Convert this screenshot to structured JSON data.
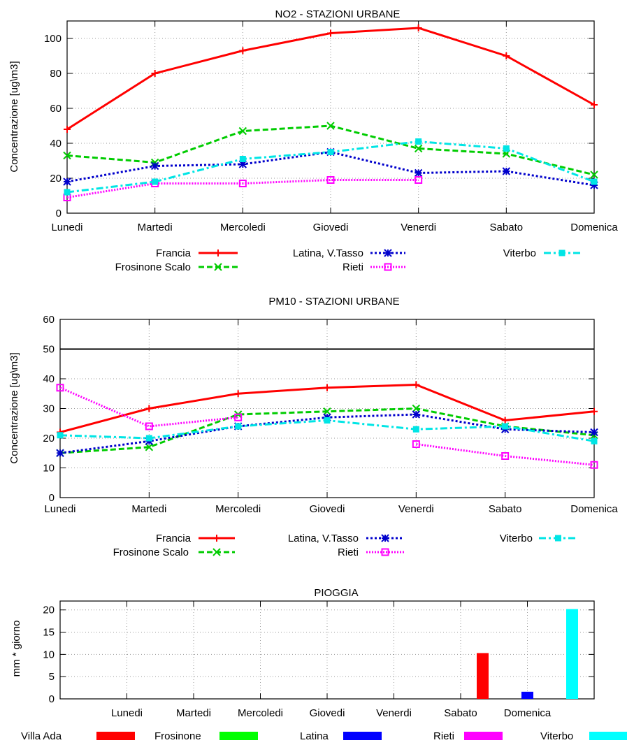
{
  "chart_data": [
    {
      "type": "line",
      "title": "NO2 - STAZIONI URBANE",
      "xlabel": "",
      "ylabel": "Concentrazione [ug\\m3]",
      "categories": [
        "Lunedi",
        "Martedi",
        "Mercoledi",
        "Giovedi",
        "Venerdi",
        "Sabato",
        "Domenica"
      ],
      "ylim": [
        0,
        110
      ],
      "yticks": [
        0,
        20,
        40,
        60,
        80,
        100
      ],
      "grid": true,
      "series": [
        {
          "name": "Francia",
          "color": "#ff0000",
          "dash": "solid",
          "marker": "plus",
          "values": [
            48,
            80,
            93,
            103,
            106,
            90,
            62
          ]
        },
        {
          "name": "Frosinone Scalo",
          "color": "#00cc00",
          "dash": "dashed",
          "marker": "x",
          "values": [
            33,
            29,
            47,
            50,
            37,
            34,
            22
          ]
        },
        {
          "name": "Latina, V.Tasso",
          "color": "#0000cc",
          "dash": "dotted",
          "marker": "star",
          "values": [
            18,
            27,
            28,
            35,
            23,
            24,
            16
          ]
        },
        {
          "name": "Rieti",
          "color": "#ff00ff",
          "dash": "dotted-fine",
          "marker": "square-open",
          "values": [
            9,
            17,
            17,
            19,
            19,
            null,
            null
          ]
        },
        {
          "name": "Viterbo",
          "color": "#00e5e5",
          "dash": "dash-dot",
          "marker": "square-filled",
          "values": [
            12,
            18,
            31,
            35,
            41,
            37,
            18
          ]
        }
      ]
    },
    {
      "type": "line",
      "title": "PM10 - STAZIONI URBANE",
      "xlabel": "",
      "ylabel": "Concentrazione [ug\\m3]",
      "categories": [
        "Lunedi",
        "Martedi",
        "Mercoledi",
        "Giovedi",
        "Venerdi",
        "Sabato",
        "Domenica"
      ],
      "ylim": [
        0,
        60
      ],
      "yticks": [
        0,
        10,
        20,
        30,
        40,
        50,
        60
      ],
      "grid": true,
      "threshold": 50,
      "series": [
        {
          "name": "Francia",
          "color": "#ff0000",
          "dash": "solid",
          "marker": "plus",
          "values": [
            22,
            30,
            35,
            37,
            38,
            26,
            29
          ]
        },
        {
          "name": "Frosinone Scalo",
          "color": "#00cc00",
          "dash": "dashed",
          "marker": "x",
          "values": [
            15,
            17,
            28,
            29,
            30,
            24,
            21
          ]
        },
        {
          "name": "Latina, V.Tasso",
          "color": "#0000cc",
          "dash": "dotted",
          "marker": "star",
          "values": [
            15,
            19,
            24,
            27,
            28,
            23,
            22
          ]
        },
        {
          "name": "Rieti",
          "color": "#ff00ff",
          "dash": "dotted-fine",
          "marker": "square-open",
          "values": [
            37,
            24,
            27,
            null,
            18,
            14,
            11
          ]
        },
        {
          "name": "Viterbo",
          "color": "#00e5e5",
          "dash": "dash-dot",
          "marker": "square-filled",
          "values": [
            21,
            20,
            24,
            26,
            23,
            24,
            19
          ]
        }
      ]
    },
    {
      "type": "bar",
      "title": "PIOGGIA",
      "xlabel": "",
      "ylabel": "mm * giorno",
      "categories": [
        "Lunedi",
        "Martedi",
        "Mercoledi",
        "Giovedi",
        "Venerdi",
        "Sabato",
        "Domenica"
      ],
      "ylim": [
        0,
        22
      ],
      "yticks": [
        0,
        5,
        10,
        15,
        20
      ],
      "grid": true,
      "series": [
        {
          "name": "Villa Ada",
          "color": "#ff0000",
          "values": [
            0,
            0,
            0,
            0,
            0,
            0,
            10.3
          ]
        },
        {
          "name": "Frosinone",
          "color": "#00ff00",
          "values": [
            0,
            0,
            0,
            0,
            0,
            0,
            0
          ]
        },
        {
          "name": "Latina",
          "color": "#0000ff",
          "values": [
            0,
            0,
            0,
            0,
            0,
            0,
            1.6
          ]
        },
        {
          "name": "Rieti",
          "color": "#ff00ff",
          "values": [
            0,
            0,
            0,
            0,
            0,
            0,
            0
          ]
        },
        {
          "name": "Viterbo",
          "color": "#00ffff",
          "values": [
            0,
            0,
            0,
            0,
            0,
            0,
            20.2
          ]
        }
      ]
    }
  ]
}
